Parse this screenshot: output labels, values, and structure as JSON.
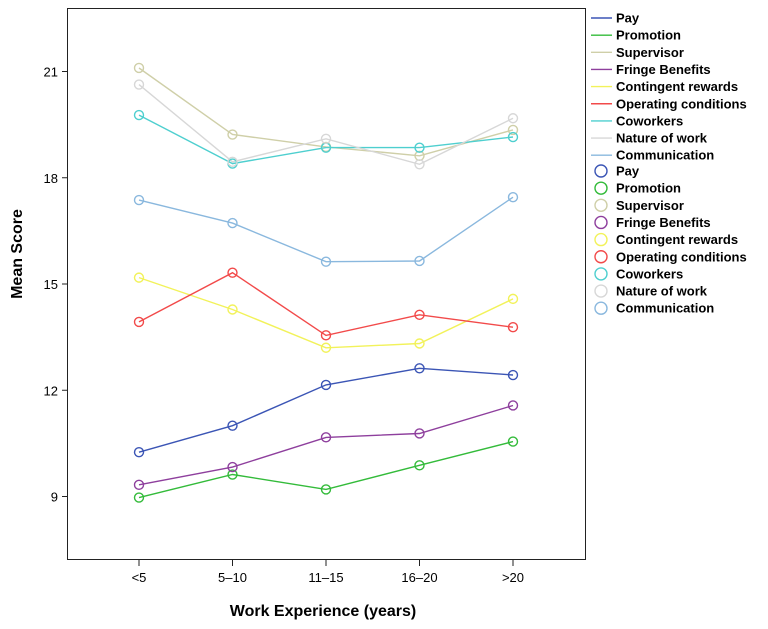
{
  "chart_data": {
    "type": "line",
    "title": "",
    "xlabel": "Work Experience (years)",
    "ylabel": "Mean Score",
    "categories": [
      "<5",
      "5–10",
      "11–15",
      "16–20",
      ">20"
    ],
    "ylim": [
      7.0,
      22.8
    ],
    "yticks": [
      9,
      12,
      15,
      18,
      21
    ],
    "ytick_labels": [
      "9",
      "12",
      "15",
      "18",
      "21"
    ],
    "grid": false,
    "legend_position": "right",
    "series": [
      {
        "name": "Pay",
        "color": "#3b55b5",
        "values": [
          10.25,
          11.0,
          12.15,
          12.62,
          12.43
        ]
      },
      {
        "name": "Promotion",
        "color": "#33bb3a",
        "values": [
          8.97,
          9.62,
          9.2,
          9.88,
          10.55
        ]
      },
      {
        "name": "Supervisor",
        "color": "#cfcfa8",
        "values": [
          21.1,
          19.22,
          18.87,
          18.62,
          19.35
        ]
      },
      {
        "name": "Fringe Benefits",
        "color": "#8e3f9d",
        "values": [
          9.33,
          9.83,
          10.67,
          10.78,
          11.57
        ]
      },
      {
        "name": "Contingent rewards",
        "color": "#f2f25a",
        "values": [
          15.18,
          14.28,
          13.2,
          13.32,
          14.58
        ]
      },
      {
        "name": "Operating conditions",
        "color": "#f24a4a",
        "values": [
          13.93,
          15.32,
          13.55,
          14.13,
          13.78
        ]
      },
      {
        "name": "Coworkers",
        "color": "#4ecfcf",
        "values": [
          19.77,
          18.4,
          18.85,
          18.85,
          19.15
        ]
      },
      {
        "name": "Nature of work",
        "color": "#d7d7d7",
        "values": [
          20.63,
          18.45,
          19.1,
          18.38,
          19.68
        ]
      },
      {
        "name": "Communication",
        "color": "#8ab8de",
        "values": [
          17.37,
          16.72,
          15.63,
          15.65,
          17.45
        ]
      }
    ]
  }
}
